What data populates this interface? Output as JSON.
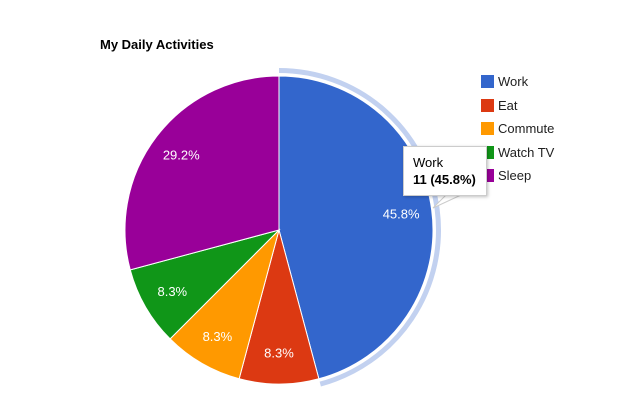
{
  "chart_data": {
    "type": "pie",
    "title": "My Daily Activities",
    "categories": [
      "Work",
      "Eat",
      "Commute",
      "Watch TV",
      "Sleep"
    ],
    "values": [
      11,
      2,
      2,
      2,
      7
    ],
    "percent_labels": [
      "45.8%",
      "8.3%",
      "8.3%",
      "8.3%",
      "29.2%"
    ],
    "colors": [
      "#3366cc",
      "#dc3912",
      "#ff9900",
      "#109618",
      "#990099"
    ],
    "legend_position": "right",
    "highlighted_slice": 0,
    "highlight_color": "#c2d1f0"
  },
  "title": "My Daily Activities",
  "legend": [
    {
      "label": "Work",
      "color": "#3366cc"
    },
    {
      "label": "Eat",
      "color": "#dc3912"
    },
    {
      "label": "Commute",
      "color": "#ff9900"
    },
    {
      "label": "Watch TV",
      "color": "#109618"
    },
    {
      "label": "Sleep",
      "color": "#990099"
    }
  ],
  "tooltip": {
    "name": "Work",
    "value": "11 (45.8%)"
  }
}
